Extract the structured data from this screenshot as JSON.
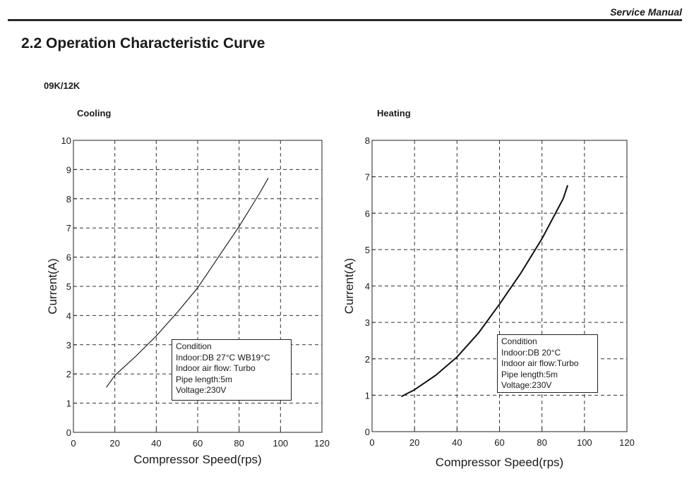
{
  "header": {
    "manual_label": "Service Manual"
  },
  "section": {
    "title": "2.2 Operation Characteristic Curve",
    "model": "09K/12K"
  },
  "chart_data": [
    {
      "type": "line",
      "title": "Cooling",
      "xlabel": "Compressor Speed(rps)",
      "ylabel": "Current(A)",
      "xlim": [
        0,
        120
      ],
      "ylim": [
        0,
        10
      ],
      "xticks": [
        "0",
        "20",
        "40",
        "60",
        "80",
        "100",
        "120"
      ],
      "yticks": [
        "0",
        "1",
        "2",
        "3",
        "4",
        "5",
        "6",
        "7",
        "8",
        "9",
        "10"
      ],
      "grid": true,
      "x": [
        16,
        20,
        30,
        40,
        50,
        60,
        70,
        80,
        90,
        94
      ],
      "y": [
        1.55,
        1.95,
        2.6,
        3.3,
        4.1,
        4.95,
        6.0,
        7.05,
        8.2,
        8.7
      ],
      "condition": [
        "Condition",
        "Indoor:DB 27°C WB19°C",
        "Indoor air flow: Turbo",
        "Pipe length:5m",
        "Voltage:230V"
      ]
    },
    {
      "type": "line",
      "title": "Heating",
      "xlabel": "Compressor Speed(rps)",
      "ylabel": "Current(A)",
      "xlim": [
        0,
        120
      ],
      "ylim": [
        0,
        8
      ],
      "xticks": [
        "0",
        "20",
        "40",
        "60",
        "80",
        "100",
        "120"
      ],
      "yticks": [
        "0",
        "1",
        "2",
        "3",
        "4",
        "5",
        "6",
        "7",
        "8"
      ],
      "grid": true,
      "x": [
        14,
        20,
        30,
        40,
        50,
        60,
        70,
        80,
        90,
        92
      ],
      "y": [
        0.97,
        1.15,
        1.55,
        2.05,
        2.7,
        3.5,
        4.35,
        5.3,
        6.4,
        6.75
      ],
      "condition": [
        "Condition",
        "Indoor:DB 20°C",
        "Indoor air flow:Turbo",
        "Pipe length:5m",
        "Voltage:230V"
      ]
    }
  ]
}
